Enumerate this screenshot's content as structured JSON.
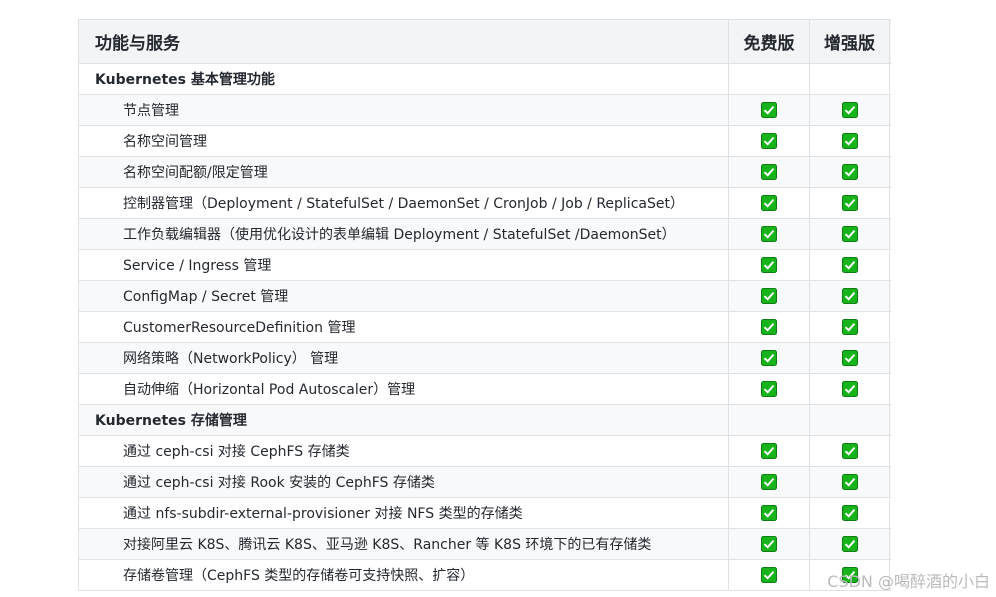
{
  "table": {
    "header": [
      "功能与服务",
      "免费版",
      "增强版"
    ],
    "rows": [
      {
        "label": "Kubernetes 基本管理功能",
        "section": true,
        "free": false,
        "pro": false
      },
      {
        "label": "节点管理",
        "section": false,
        "free": true,
        "pro": true
      },
      {
        "label": "名称空间管理",
        "section": false,
        "free": true,
        "pro": true
      },
      {
        "label": "名称空间配额/限定管理",
        "section": false,
        "free": true,
        "pro": true
      },
      {
        "label": "控制器管理（Deployment / StatefulSet / DaemonSet / CronJob / Job / ReplicaSet）",
        "section": false,
        "free": true,
        "pro": true
      },
      {
        "label": "工作负载编辑器（使用优化设计的表单编辑 Deployment / StatefulSet /DaemonSet）",
        "section": false,
        "free": true,
        "pro": true
      },
      {
        "label": "Service / Ingress 管理",
        "section": false,
        "free": true,
        "pro": true
      },
      {
        "label": "ConfigMap / Secret 管理",
        "section": false,
        "free": true,
        "pro": true
      },
      {
        "label": "CustomerResourceDefinition 管理",
        "section": false,
        "free": true,
        "pro": true
      },
      {
        "label": "网络策略（NetworkPolicy） 管理",
        "section": false,
        "free": true,
        "pro": true
      },
      {
        "label": "自动伸缩（Horizontal Pod Autoscaler）管理",
        "section": false,
        "free": true,
        "pro": true
      },
      {
        "label": "Kubernetes 存储管理",
        "section": true,
        "free": false,
        "pro": false
      },
      {
        "label": "通过 ceph-csi 对接 CephFS 存储类",
        "section": false,
        "free": true,
        "pro": true
      },
      {
        "label": "通过 ceph-csi 对接 Rook 安装的 CephFS 存储类",
        "section": false,
        "free": true,
        "pro": true
      },
      {
        "label": "通过 nfs-subdir-external-provisioner 对接 NFS 类型的存储类",
        "section": false,
        "free": true,
        "pro": true
      },
      {
        "label": "对接阿里云 K8S、腾讯云 K8S、亚马逊 K8S、Rancher 等 K8S 环境下的已有存储类",
        "section": false,
        "free": true,
        "pro": true
      },
      {
        "label": "存储卷管理（CephFS 类型的存储卷可支持快照、扩容）",
        "section": false,
        "free": true,
        "pro": true
      }
    ]
  },
  "watermark": "CSDN @喝醉酒的小白"
}
